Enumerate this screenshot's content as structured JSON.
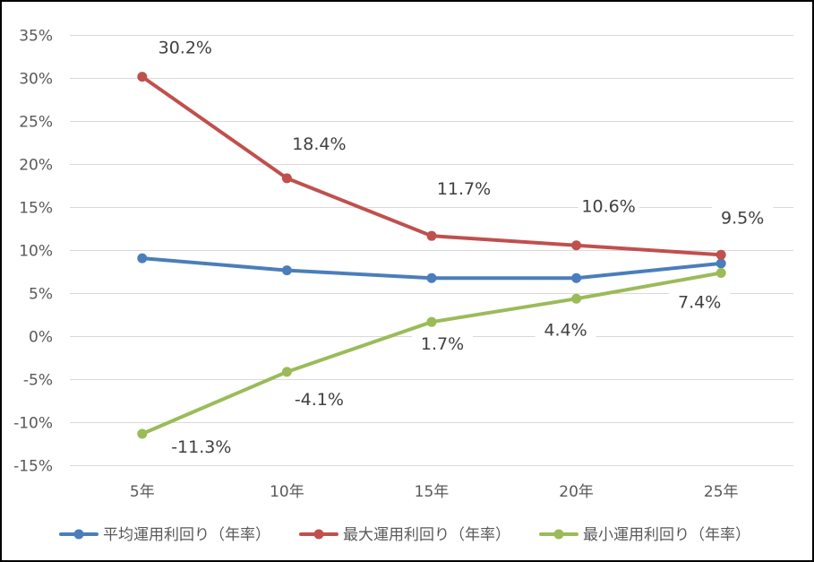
{
  "chart_data": {
    "type": "line",
    "title": "",
    "xlabel": "",
    "ylabel": "",
    "categories": [
      "5年",
      "10年",
      "15年",
      "20年",
      "25年"
    ],
    "ylim": [
      -15,
      35
    ],
    "y_ticks": [
      35,
      30,
      25,
      20,
      15,
      10,
      5,
      0,
      -5,
      -10,
      -15
    ],
    "y_tick_labels": [
      "35%",
      "30%",
      "25%",
      "20%",
      "15%",
      "10%",
      "5%",
      "0%",
      "-5%",
      "-10%",
      "-15%"
    ],
    "grid": true,
    "legend_position": "bottom",
    "series": [
      {
        "name": "平均運用利回り（年率）",
        "color": "#4a7ebb",
        "values": [
          9.1,
          7.7,
          6.8,
          6.8,
          8.5
        ],
        "data_labels": null
      },
      {
        "name": "最大運用利回り（年率）",
        "color": "#c0504d",
        "values": [
          30.2,
          18.4,
          11.7,
          10.6,
          9.5
        ],
        "data_labels": [
          "30.2%",
          "18.4%",
          "11.7%",
          "10.6%",
          "9.5%"
        ]
      },
      {
        "name": "最小運用利回り（年率）",
        "color": "#9bbb59",
        "values": [
          -11.3,
          -4.1,
          1.7,
          4.4,
          7.4
        ],
        "data_labels": [
          "-11.3%",
          "-4.1%",
          "1.7%",
          "4.4%",
          "7.4%"
        ]
      }
    ]
  }
}
